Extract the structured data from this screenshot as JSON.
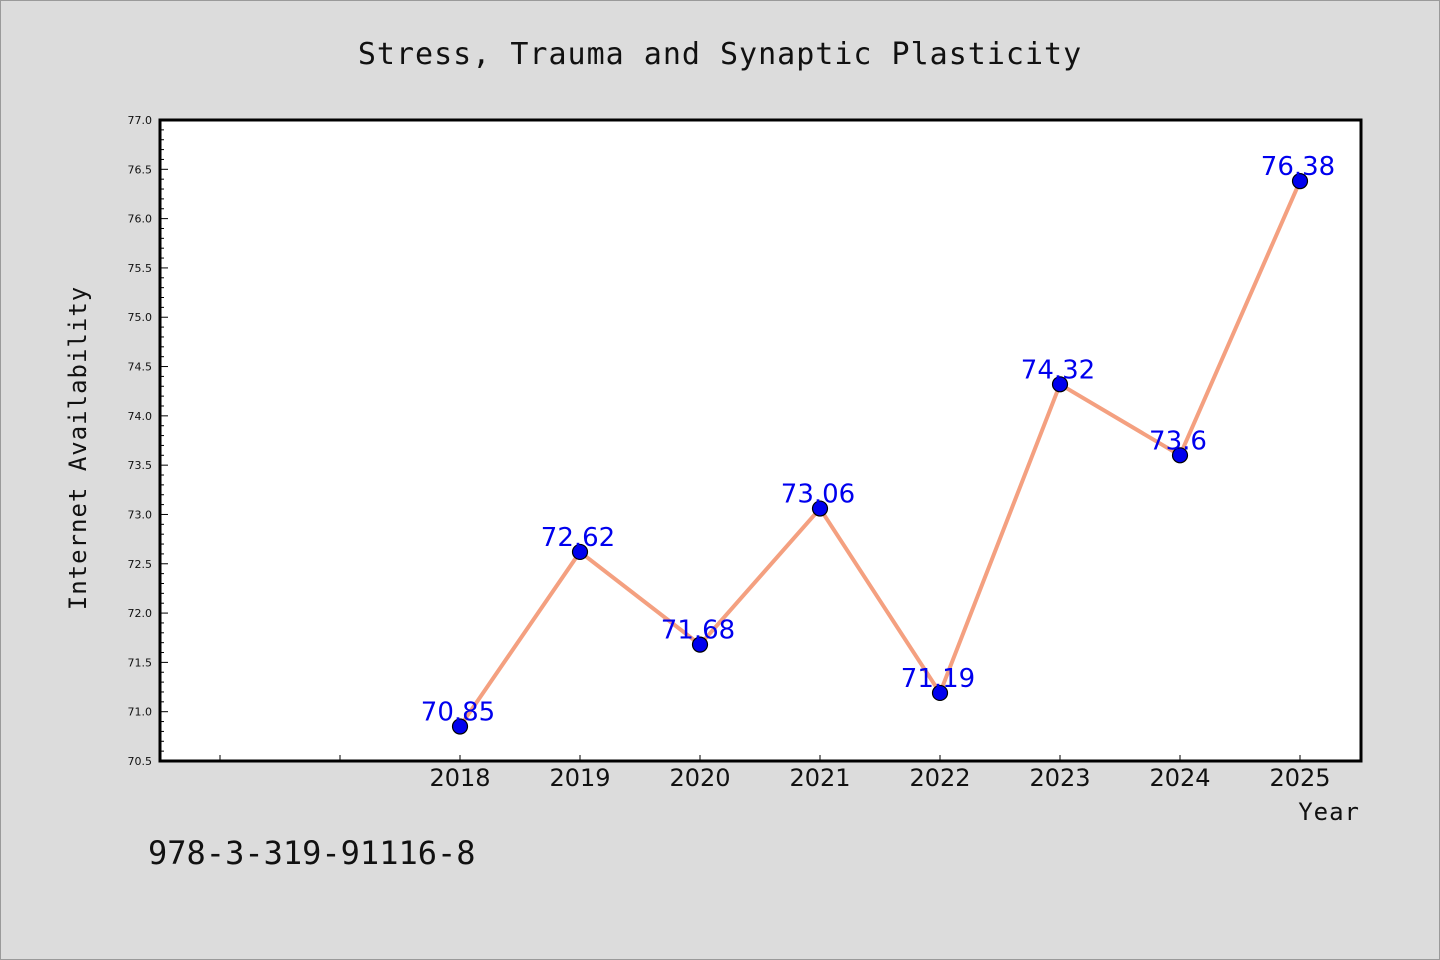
{
  "chart_data": {
    "type": "line",
    "title": "Stress, Trauma and Synaptic Plasticity",
    "xlabel": "Year",
    "ylabel": "Internet Availability",
    "categories": [
      "2018",
      "2019",
      "2020",
      "2021",
      "2022",
      "2023",
      "2024",
      "2025"
    ],
    "values": [
      70.85,
      72.62,
      71.68,
      73.06,
      71.19,
      74.32,
      73.6,
      76.38
    ],
    "data_labels": [
      "70.85",
      "72.62",
      "71.68",
      "73.06",
      "71.19",
      "74.32",
      "73.6",
      "76.38"
    ],
    "ylim": [
      70.5,
      77.0
    ],
    "y_ticks": [
      "70.5",
      "71.0",
      "71.5",
      "72.0",
      "72.5",
      "73.0",
      "73.5",
      "74.0",
      "74.5",
      "75.0",
      "75.5",
      "76.0",
      "76.5",
      "77.0"
    ],
    "grid": false,
    "line_color": "#f4a080",
    "marker_color": "#0000ee",
    "label_color": "#0000ee"
  },
  "footer_text": "978-3-319-91116-8"
}
